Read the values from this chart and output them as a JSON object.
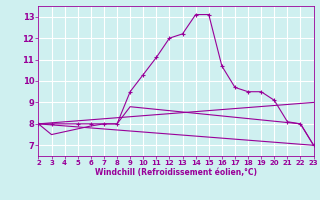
{
  "xlabel": "Windchill (Refroidissement éolien,°C)",
  "bg_color": "#cff0f0",
  "grid_color": "#ffffff",
  "line_color": "#990099",
  "xlim": [
    2,
    23
  ],
  "ylim": [
    6.5,
    13.5
  ],
  "xticks": [
    2,
    3,
    4,
    5,
    6,
    7,
    8,
    9,
    10,
    11,
    12,
    13,
    14,
    15,
    16,
    17,
    18,
    19,
    20,
    21,
    22,
    23
  ],
  "yticks": [
    7,
    8,
    9,
    10,
    11,
    12,
    13
  ],
  "series": [
    {
      "x": [
        2,
        3,
        5,
        6,
        7,
        8,
        9,
        10,
        11,
        12,
        13,
        14,
        15,
        16,
        17,
        18,
        19,
        20,
        21,
        22,
        23
      ],
      "y": [
        8.0,
        8.0,
        8.0,
        8.0,
        8.0,
        8.0,
        9.5,
        10.3,
        11.1,
        12.0,
        12.2,
        13.1,
        13.1,
        10.7,
        9.7,
        9.5,
        9.5,
        9.1,
        8.1,
        8.0,
        7.0
      ],
      "marker": true
    },
    {
      "x": [
        2,
        3,
        6,
        7,
        8,
        9,
        22,
        23
      ],
      "y": [
        8.0,
        7.5,
        7.9,
        8.0,
        8.0,
        8.8,
        8.0,
        7.0
      ],
      "marker": false
    },
    {
      "x": [
        2,
        23
      ],
      "y": [
        8.0,
        9.0
      ],
      "marker": false
    },
    {
      "x": [
        2,
        23
      ],
      "y": [
        8.0,
        7.0
      ],
      "marker": false
    }
  ]
}
